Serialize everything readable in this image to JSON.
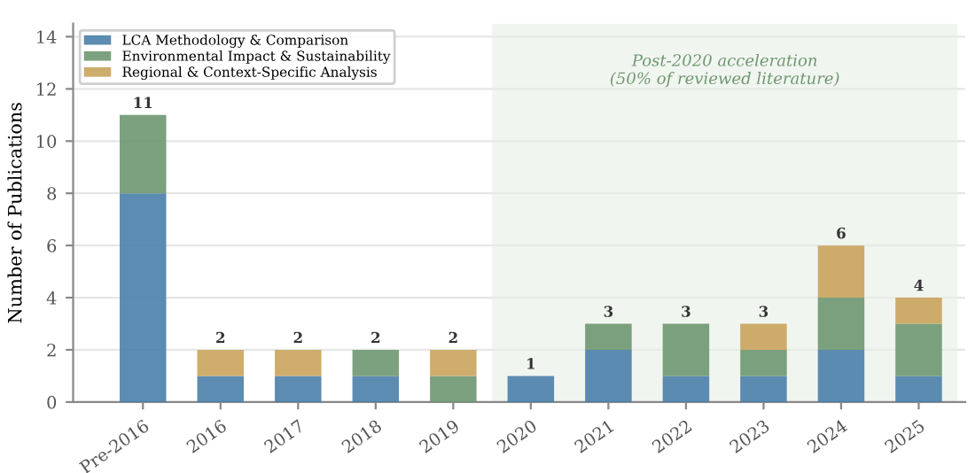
{
  "chart_data": {
    "type": "bar",
    "stacked": true,
    "ylabel": "Number of Publications",
    "categories": [
      "Pre-2016",
      "2016",
      "2017",
      "2018",
      "2019",
      "2020",
      "2021",
      "2022",
      "2023",
      "2024",
      "2025"
    ],
    "series": [
      {
        "name": "LCA Methodology & Comparison",
        "color": "#4a7fa8",
        "values": [
          8,
          1,
          1,
          1,
          0,
          1,
          2,
          1,
          1,
          2,
          1
        ]
      },
      {
        "name": "Environmental Impact & Sustainability",
        "color": "#6e9770",
        "values": [
          3,
          0,
          0,
          1,
          1,
          0,
          1,
          2,
          1,
          2,
          2
        ]
      },
      {
        "name": "Regional & Context-Specific Analysis",
        "color": "#c9a45c",
        "values": [
          0,
          1,
          1,
          0,
          1,
          0,
          0,
          0,
          1,
          2,
          1
        ]
      }
    ],
    "totals": [
      "11",
      "2",
      "2",
      "2",
      "2",
      "1",
      "3",
      "3",
      "3",
      "6",
      "4"
    ],
    "bands": [
      {
        "axis": "x",
        "from": "2020",
        "to": "2025",
        "label": "Post-2020 acceleration\n(50% of reviewed literature)",
        "color": "#e8efe6"
      }
    ],
    "ylim": [
      0,
      14.5
    ],
    "yticks": [
      0,
      2,
      4,
      6,
      8,
      10,
      12,
      14
    ],
    "grid": "y",
    "legend": "top left"
  }
}
